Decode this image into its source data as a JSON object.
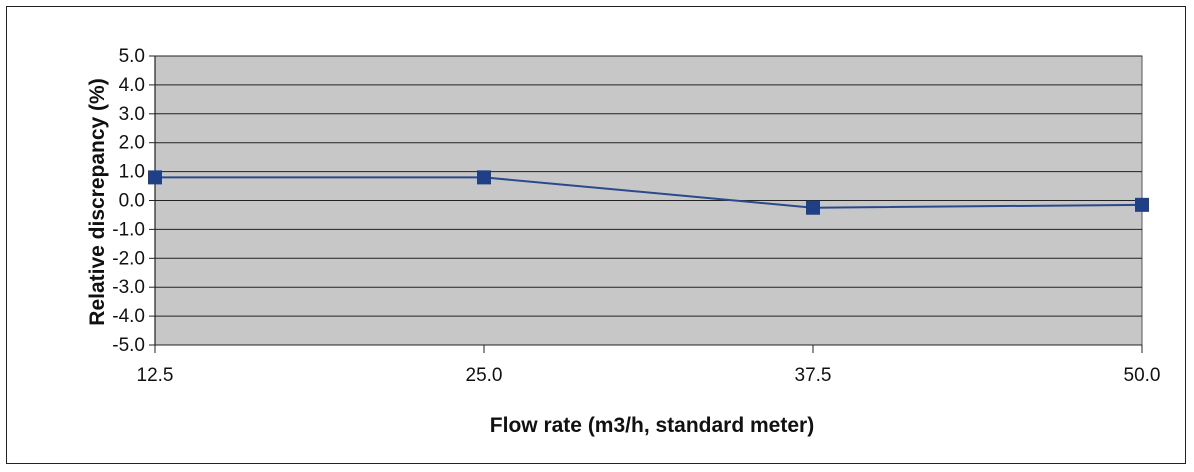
{
  "chart_data": {
    "type": "line",
    "title": "",
    "xlabel": "Flow rate (m3/h, standard meter)",
    "ylabel": "Relative discrepancy (%)",
    "x": [
      12.5,
      25.0,
      37.5,
      50.0
    ],
    "x_tick_labels": [
      "12.5",
      "25.0",
      "37.5",
      "50.0"
    ],
    "ylim": [
      -5.0,
      5.0
    ],
    "y_tick_labels": [
      "5.0",
      "4.0",
      "3.0",
      "2.0",
      "1.0",
      "0.0",
      "-1.0",
      "-2.0",
      "-3.0",
      "-4.0",
      "-5.0"
    ],
    "series": [
      {
        "values": [
          0.8,
          0.8,
          -0.25,
          -0.15
        ]
      }
    ],
    "grid": true,
    "legend": "none",
    "colors": {
      "plot_bg": "#c7c7c7",
      "line": "#2b4a8c",
      "marker": "#1f3f86",
      "grid": "#222222"
    }
  }
}
